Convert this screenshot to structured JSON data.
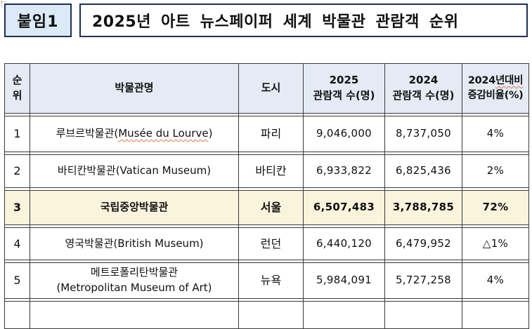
{
  "page": {
    "attachment_label": "붙임1",
    "title": "2025년 아트 뉴스페이퍼 세계 박물관 관람객 순위"
  },
  "colors": {
    "box_border": "#1d2f55",
    "attachment_bg": "#dce9f6",
    "table_border": "#3a3a3a",
    "header_bg": "#e4ebf5",
    "highlight_bg": "#faf4dc",
    "spellcheck_underline": "#e0764a"
  },
  "table": {
    "header": {
      "rank_l1": "순",
      "rank_l2": "위",
      "museum": "박물관명",
      "city": "도시",
      "y2025_l1": "2025",
      "y2025_l2": "관람객 수(명)",
      "y2024_l1": "2024",
      "y2024_l2": "관람객 수(명)",
      "change_l1_plain": "2024",
      "change_l1_wavy": "년대비",
      "change_l2": "증감비율(%)"
    },
    "rows": [
      {
        "rank": "1",
        "name_pre": "루브르박물관(",
        "name_wavy": "Musée du Lourve",
        "name_post": ")",
        "city": "파리",
        "v2025": "9,046,000",
        "v2024": "8,737,050",
        "change": "4%"
      },
      {
        "rank": "2",
        "name": "바티칸박물관(Vatican Museum)",
        "city": "바티칸",
        "v2025": "6,933,822",
        "v2024": "6,825,436",
        "change": "2%"
      },
      {
        "rank": "3",
        "name": "국립중앙박물관",
        "highlighted": true,
        "city": "서울",
        "v2025": "6,507,483",
        "v2024": "3,788,785",
        "change": "72%"
      },
      {
        "rank": "4",
        "name": "영국박물관(British Museum)",
        "city": "런던",
        "v2025": "6,440,120",
        "v2024": "6,479,952",
        "change": "△1%"
      },
      {
        "rank": "5",
        "name": "메트로폴리탄박물관",
        "name_line2": "(Metropolitan Museum of Art)",
        "city": "뉴욕",
        "v2025": "5,984,091",
        "v2024": "5,727,258",
        "change": "4%"
      }
    ]
  }
}
